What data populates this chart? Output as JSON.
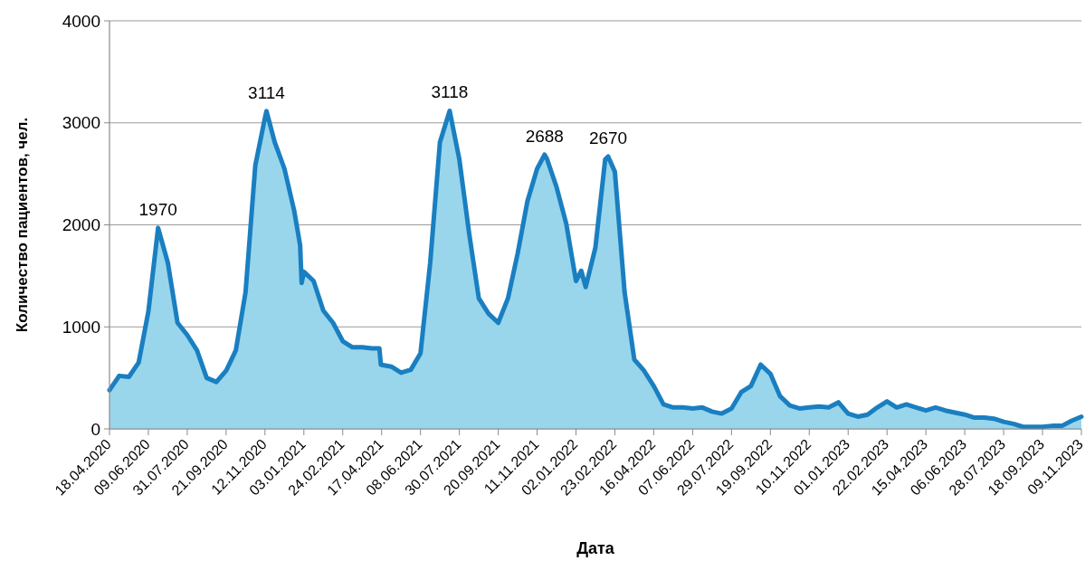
{
  "chart_data": {
    "type": "area",
    "xlabel": "Дата",
    "ylabel": "Количество пациентов, чел.",
    "x": [
      "2020-04-18",
      "2020-05-01",
      "2020-05-14",
      "2020-05-27",
      "2020-06-09",
      "2020-06-22",
      "2020-07-05",
      "2020-07-18",
      "2020-07-31",
      "2020-08-13",
      "2020-08-26",
      "2020-09-08",
      "2020-09-21",
      "2020-10-04",
      "2020-10-17",
      "2020-10-30",
      "2020-11-12",
      "2020-11-14",
      "2020-11-25",
      "2020-12-08",
      "2020-12-21",
      "2020-12-29",
      "2020-12-31",
      "2021-01-03",
      "2021-01-16",
      "2021-01-29",
      "2021-02-11",
      "2021-02-24",
      "2021-03-09",
      "2021-03-22",
      "2021-04-04",
      "2021-04-14",
      "2021-04-16",
      "2021-04-30",
      "2021-05-13",
      "2021-05-26",
      "2021-06-08",
      "2021-06-21",
      "2021-07-04",
      "2021-07-17",
      "2021-07-30",
      "2021-08-12",
      "2021-08-25",
      "2021-09-07",
      "2021-09-20",
      "2021-10-03",
      "2021-10-16",
      "2021-10-29",
      "2021-11-11",
      "2021-11-21",
      "2021-11-24",
      "2021-12-07",
      "2021-12-20",
      "2022-01-02",
      "2022-01-09",
      "2022-01-15",
      "2022-01-28",
      "2022-02-10",
      "2022-02-14",
      "2022-02-23",
      "2022-03-08",
      "2022-03-21",
      "2022-04-03",
      "2022-04-16",
      "2022-04-29",
      "2022-05-12",
      "2022-05-25",
      "2022-06-07",
      "2022-06-20",
      "2022-07-03",
      "2022-07-16",
      "2022-07-29",
      "2022-08-11",
      "2022-08-24",
      "2022-09-06",
      "2022-09-19",
      "2022-10-02",
      "2022-10-15",
      "2022-10-28",
      "2022-11-10",
      "2022-11-23",
      "2022-12-06",
      "2022-12-19",
      "2023-01-01",
      "2023-01-14",
      "2023-01-27",
      "2023-02-09",
      "2023-02-22",
      "2023-03-07",
      "2023-03-20",
      "2023-04-02",
      "2023-04-15",
      "2023-04-28",
      "2023-05-11",
      "2023-05-24",
      "2023-06-06",
      "2023-06-19",
      "2023-07-02",
      "2023-07-15",
      "2023-07-28",
      "2023-08-10",
      "2023-08-23",
      "2023-09-05",
      "2023-09-18",
      "2023-10-01",
      "2023-10-14",
      "2023-10-27",
      "2023-11-09"
    ],
    "series": [
      {
        "color": "#1a7fc1",
        "values": [
          380,
          520,
          510,
          650,
          1150,
          1970,
          1630,
          1040,
          920,
          770,
          500,
          460,
          570,
          770,
          1340,
          2580,
          3050,
          3114,
          2810,
          2550,
          2140,
          1800,
          1430,
          1540,
          1450,
          1160,
          1040,
          860,
          800,
          800,
          790,
          790,
          630,
          610,
          550,
          580,
          740,
          1630,
          2810,
          3118,
          2640,
          1920,
          1280,
          1130,
          1040,
          1280,
          1720,
          2230,
          2550,
          2688,
          2650,
          2370,
          2010,
          1450,
          1550,
          1390,
          1780,
          2640,
          2670,
          2520,
          1340,
          680,
          570,
          420,
          240,
          210,
          210,
          200,
          210,
          170,
          150,
          200,
          360,
          420,
          630,
          540,
          320,
          230,
          200,
          210,
          220,
          210,
          260,
          150,
          120,
          140,
          210,
          270,
          210,
          240,
          210,
          180,
          210,
          180,
          160,
          140,
          110,
          110,
          100,
          70,
          50,
          20,
          20,
          20,
          30,
          30,
          80,
          120
        ]
      }
    ],
    "xlim": [
      "2020-04-18",
      "2023-11-09"
    ],
    "xticks": [
      {
        "value": "2020-04-18",
        "label": "18.04.2020"
      },
      {
        "value": "2020-06-09",
        "label": "09.06.2020"
      },
      {
        "value": "2020-07-31",
        "label": "31.07.2020"
      },
      {
        "value": "2020-09-21",
        "label": "21.09.2020"
      },
      {
        "value": "2020-11-12",
        "label": "12.11.2020"
      },
      {
        "value": "2021-01-03",
        "label": "03.01.2021"
      },
      {
        "value": "2021-02-24",
        "label": "24.02.2021"
      },
      {
        "value": "2021-04-17",
        "label": "17.04.2021"
      },
      {
        "value": "2021-06-08",
        "label": "08.06.2021"
      },
      {
        "value": "2021-07-30",
        "label": "30.07.2021"
      },
      {
        "value": "2021-09-20",
        "label": "20.09.2021"
      },
      {
        "value": "2021-11-11",
        "label": "11.11.2021"
      },
      {
        "value": "2022-01-02",
        "label": "02.01.2022"
      },
      {
        "value": "2022-02-23",
        "label": "23.02.2022"
      },
      {
        "value": "2022-04-16",
        "label": "16.04.2022"
      },
      {
        "value": "2022-06-07",
        "label": "07.06.2022"
      },
      {
        "value": "2022-07-29",
        "label": "29.07.2022"
      },
      {
        "value": "2022-09-19",
        "label": "19.09.2022"
      },
      {
        "value": "2022-11-10",
        "label": "10.11.2022"
      },
      {
        "value": "2023-01-01",
        "label": "01.01.2023"
      },
      {
        "value": "2023-02-22",
        "label": "22.02.2023"
      },
      {
        "value": "2023-04-15",
        "label": "15.04.2023"
      },
      {
        "value": "2023-06-06",
        "label": "06.06.2023"
      },
      {
        "value": "2023-07-28",
        "label": "28.07.2023"
      },
      {
        "value": "2023-09-18",
        "label": "18.09.2023"
      },
      {
        "value": "2023-11-09",
        "label": "09.11.2023"
      }
    ],
    "ylim": [
      0,
      4000
    ],
    "yticks": [
      0,
      1000,
      2000,
      3000,
      4000
    ],
    "grid": "y",
    "annotations": [
      {
        "text": "1970",
        "x": "2020-06-22",
        "y": 1970
      },
      {
        "text": "3114",
        "x": "2020-11-14",
        "y": 3114
      },
      {
        "text": "3118",
        "x": "2021-07-17",
        "y": 3118
      },
      {
        "text": "2688",
        "x": "2021-11-21",
        "y": 2688
      },
      {
        "text": "2670",
        "x": "2022-02-14",
        "y": 2670
      }
    ]
  }
}
